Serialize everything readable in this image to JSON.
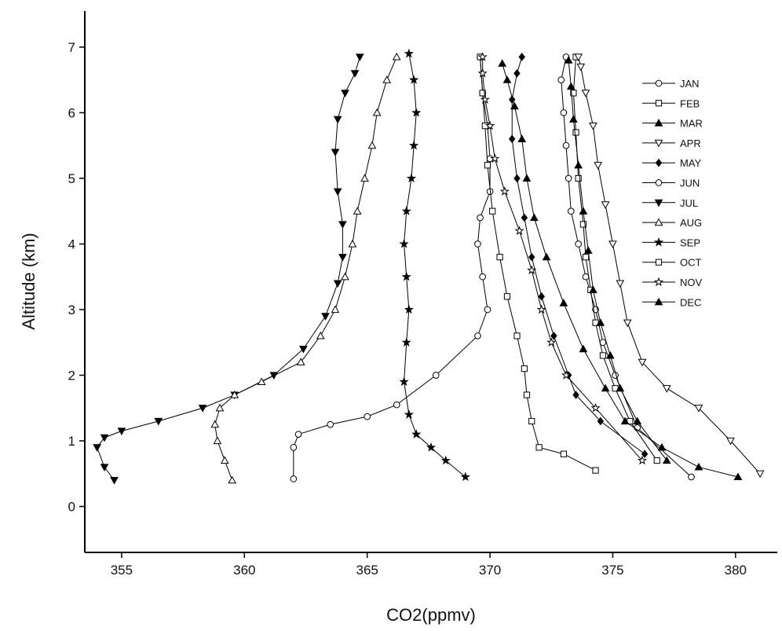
{
  "chart_data": {
    "type": "line",
    "xlabel": "CO2(ppmv)",
    "ylabel": "Altitude (km)",
    "xlim": [
      353.5,
      381.7
    ],
    "ylim": [
      -0.7,
      7.55
    ],
    "xticks": [
      355,
      360,
      365,
      370,
      375,
      380
    ],
    "yticks": [
      0,
      1,
      2,
      3,
      4,
      5,
      6,
      7
    ],
    "xtick_labels": [
      "355",
      "360",
      "365",
      "370",
      "375",
      "380"
    ],
    "ytick_labels": [
      "0",
      "1",
      "2",
      "3",
      "4",
      "5",
      "6",
      "7"
    ],
    "grid": false,
    "legend_position": "top-right",
    "series": [
      {
        "name": "JAN",
        "marker": "circle-open",
        "x": [
          378.2,
          376.0,
          375.1,
          374.6,
          374.3,
          373.9,
          373.6,
          373.3,
          373.2,
          373.1,
          373.0,
          372.9,
          373.1
        ],
        "y": [
          0.45,
          1.2,
          2.0,
          2.5,
          3.0,
          3.5,
          4.0,
          4.5,
          5.0,
          5.5,
          6.0,
          6.5,
          6.85
        ]
      },
      {
        "name": "FEB",
        "marker": "square-open",
        "x": [
          376.8,
          375.7,
          375.1,
          374.6,
          374.3,
          374.1,
          373.9,
          373.8,
          373.6,
          373.5,
          373.4,
          373.5
        ],
        "y": [
          0.7,
          1.3,
          1.8,
          2.3,
          2.8,
          3.3,
          3.8,
          4.3,
          5.0,
          5.7,
          6.3,
          6.85
        ]
      },
      {
        "name": "MAR",
        "marker": "triangle-up-filled",
        "x": [
          377.2,
          376.0,
          375.3,
          374.9,
          374.5,
          374.2,
          374.0,
          373.8,
          373.6,
          373.4,
          373.3,
          373.2
        ],
        "y": [
          0.7,
          1.3,
          1.8,
          2.3,
          2.8,
          3.3,
          3.9,
          4.5,
          5.2,
          5.9,
          6.4,
          6.8
        ]
      },
      {
        "name": "APR",
        "marker": "triangle-down-open",
        "x": [
          381.0,
          379.8,
          378.5,
          377.2,
          376.2,
          375.6,
          375.3,
          375.0,
          374.7,
          374.4,
          374.2,
          373.9,
          373.7,
          373.6
        ],
        "y": [
          0.5,
          1.0,
          1.5,
          1.8,
          2.2,
          2.8,
          3.4,
          4.0,
          4.6,
          5.2,
          5.8,
          6.3,
          6.7,
          6.85
        ]
      },
      {
        "name": "MAY",
        "marker": "diamond-filled",
        "x": [
          376.3,
          374.5,
          373.5,
          373.2,
          372.6,
          372.1,
          371.7,
          371.4,
          371.1,
          370.9,
          370.9,
          371.1,
          371.3
        ],
        "y": [
          0.8,
          1.3,
          1.7,
          2.0,
          2.6,
          3.2,
          3.8,
          4.4,
          5.0,
          5.6,
          6.2,
          6.6,
          6.85
        ]
      },
      {
        "name": "JUN",
        "marker": "circle-open",
        "x": [
          362.0,
          362.0,
          362.2,
          363.5,
          365.0,
          366.2,
          367.8,
          369.5,
          369.9,
          369.7,
          369.5,
          369.6,
          370.0,
          370.0,
          369.9,
          369.7,
          369.6
        ],
        "y": [
          0.42,
          0.9,
          1.1,
          1.25,
          1.37,
          1.55,
          2.0,
          2.6,
          3.0,
          3.5,
          4.0,
          4.4,
          4.8,
          5.3,
          5.8,
          6.3,
          6.85
        ]
      },
      {
        "name": "JUL",
        "marker": "triangle-down-filled",
        "x": [
          354.7,
          354.3,
          354.0,
          354.3,
          355.0,
          356.5,
          358.3,
          359.6,
          361.2,
          362.4,
          363.3,
          363.8,
          364.0,
          364.0,
          363.8,
          363.7,
          363.8,
          364.1,
          364.5,
          364.7
        ],
        "y": [
          0.4,
          0.6,
          0.9,
          1.05,
          1.15,
          1.3,
          1.5,
          1.7,
          2.0,
          2.4,
          2.9,
          3.4,
          3.8,
          4.3,
          4.8,
          5.4,
          5.9,
          6.3,
          6.6,
          6.85
        ]
      },
      {
        "name": "AUG",
        "marker": "triangle-up-open",
        "x": [
          359.5,
          359.2,
          358.9,
          358.8,
          359.0,
          359.6,
          360.7,
          362.3,
          363.1,
          363.7,
          364.1,
          364.4,
          364.6,
          364.9,
          365.2,
          365.4,
          365.8,
          366.2
        ],
        "y": [
          0.4,
          0.7,
          1.0,
          1.25,
          1.5,
          1.7,
          1.9,
          2.2,
          2.6,
          3.0,
          3.5,
          4.0,
          4.5,
          5.0,
          5.5,
          6.0,
          6.5,
          6.85
        ]
      },
      {
        "name": "SEP",
        "marker": "star-filled",
        "x": [
          369.0,
          368.2,
          367.6,
          367.0,
          366.7,
          366.5,
          366.6,
          366.7,
          366.6,
          366.5,
          366.6,
          366.8,
          366.9,
          367.0,
          366.9,
          366.7
        ],
        "y": [
          0.45,
          0.7,
          0.9,
          1.1,
          1.4,
          1.9,
          2.5,
          3.0,
          3.5,
          4.0,
          4.5,
          5.0,
          5.5,
          6.0,
          6.5,
          6.9
        ]
      },
      {
        "name": "OCT",
        "marker": "square-open",
        "x": [
          374.3,
          373.0,
          372.0,
          371.7,
          371.5,
          371.4,
          371.1,
          370.7,
          370.4,
          370.1,
          369.9,
          369.8,
          369.7,
          369.6
        ],
        "y": [
          0.55,
          0.8,
          0.9,
          1.3,
          1.7,
          2.1,
          2.6,
          3.2,
          3.8,
          4.5,
          5.2,
          5.8,
          6.3,
          6.85
        ]
      },
      {
        "name": "NOV",
        "marker": "star-open",
        "x": [
          376.2,
          374.3,
          373.1,
          372.5,
          372.1,
          371.7,
          371.2,
          370.6,
          370.2,
          370.0,
          369.8,
          369.7,
          369.7
        ],
        "y": [
          0.7,
          1.5,
          2.0,
          2.5,
          3.0,
          3.6,
          4.2,
          4.8,
          5.3,
          5.8,
          6.2,
          6.6,
          6.85
        ]
      },
      {
        "name": "DEC",
        "marker": "triangle-up-filled",
        "x": [
          380.1,
          378.5,
          377.0,
          375.5,
          374.7,
          373.8,
          373.0,
          372.3,
          371.8,
          371.5,
          371.3,
          371.0,
          370.7,
          370.5
        ],
        "y": [
          0.45,
          0.6,
          0.9,
          1.3,
          1.8,
          2.4,
          3.1,
          3.8,
          4.4,
          5.0,
          5.6,
          6.1,
          6.5,
          6.75
        ]
      }
    ]
  }
}
